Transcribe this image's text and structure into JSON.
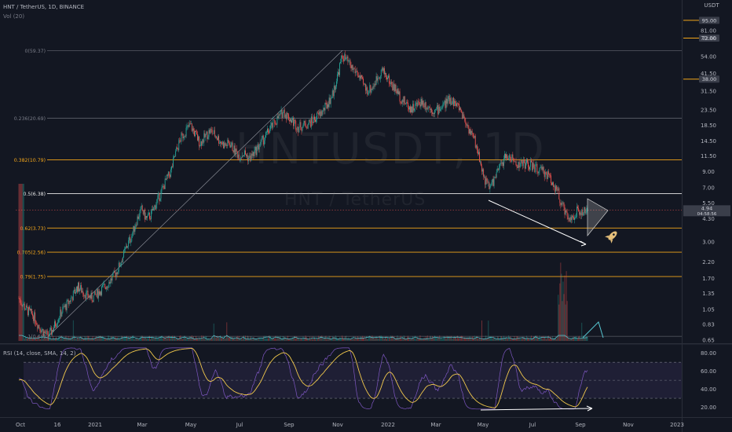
{
  "header": {
    "symbol_line": "HNT / TetherUS, 1D, BINANCE",
    "volume_label": "Vol (20)",
    "rsi_label": "RSI (14, close, SMA, 14, 2)"
  },
  "watermark": {
    "ticker": "HNTUSDT, 1D",
    "pair": "HNT / TetherUS"
  },
  "colors": {
    "background": "#131722",
    "fib_gray": "#787b86",
    "fib_white": "#e8e8e8",
    "fib_orange": "#f2a51a",
    "candle_up": "#26a69a",
    "candle_down": "#ef5350",
    "rsi_line": "#7e57c2",
    "rsi_ma": "#f2c94c",
    "price_tag": "#3a3e4a",
    "volume_ma": "#56c5d0"
  },
  "chart_data": {
    "type": "candlestick",
    "price_axis_unit": "USDT",
    "price_scale": "log",
    "price_ticks": [
      "81.00",
      "72.00",
      "54.00",
      "41.50",
      "31.50",
      "23.50",
      "18.50",
      "14.50",
      "11.50",
      "9.00",
      "7.00",
      "5.50",
      "4.30",
      "3.00",
      "2.20",
      "1.70",
      "1.35",
      "1.05",
      "0.83",
      "0.65"
    ],
    "price_tick_values": [
      81.0,
      72.0,
      54.0,
      41.5,
      31.5,
      23.5,
      18.5,
      14.5,
      11.5,
      9.0,
      7.0,
      5.5,
      4.3,
      3.0,
      2.2,
      1.7,
      1.35,
      1.05,
      0.83,
      0.65
    ],
    "time_ticks": [
      "Oct",
      "16",
      "2021",
      "Mar",
      "May",
      "Jul",
      "Sep",
      "Nov",
      "2022",
      "Mar",
      "May",
      "Jul",
      "Sep",
      "Nov",
      "2023"
    ],
    "fib_levels": [
      {
        "label": "0(59.37)",
        "value": 59.37,
        "color": "gray"
      },
      {
        "label": "0.236(20.69)",
        "value": 20.69,
        "color": "gray"
      },
      {
        "label": "0.382(10.79)",
        "value": 10.79,
        "color": "orange"
      },
      {
        "label": "0.5(6.38)",
        "value": 6.38,
        "color": "white"
      },
      {
        "label": "0.62(3.73)",
        "value": 3.73,
        "color": "orange"
      },
      {
        "label": "0.705(2.56)",
        "value": 2.56,
        "color": "orange"
      },
      {
        "label": "0.79(1.75)",
        "value": 1.75,
        "color": "orange"
      },
      {
        "label": "1(0.69)",
        "value": 0.69,
        "color": "gray"
      }
    ],
    "horizontal_rays": [
      {
        "label": "95.00",
        "value": 95.0
      },
      {
        "label": "72.00",
        "value": 72.0
      },
      {
        "label": "38.00",
        "value": 38.0
      }
    ],
    "current_price": {
      "label": "4.94",
      "value": 4.94,
      "countdown": "04:58:56"
    },
    "price_path": [
      [
        0,
        1.25
      ],
      [
        3,
        1.05
      ],
      [
        6,
        0.95
      ],
      [
        8,
        0.82
      ],
      [
        10,
        0.74
      ],
      [
        12,
        0.69
      ],
      [
        14,
        0.78
      ],
      [
        16,
        0.92
      ],
      [
        18,
        1.05
      ],
      [
        20,
        1.15
      ],
      [
        22,
        1.3
      ],
      [
        24,
        1.5
      ],
      [
        26,
        1.4
      ],
      [
        28,
        1.3
      ],
      [
        30,
        1.25
      ],
      [
        32,
        1.35
      ],
      [
        34,
        1.45
      ],
      [
        36,
        1.55
      ],
      [
        38,
        1.7
      ],
      [
        40,
        1.9
      ],
      [
        42,
        2.3
      ],
      [
        44,
        2.8
      ],
      [
        46,
        3.3
      ],
      [
        48,
        4.2
      ],
      [
        50,
        5.0
      ],
      [
        52,
        4.3
      ],
      [
        54,
        4.6
      ],
      [
        56,
        5.5
      ],
      [
        58,
        6.5
      ],
      [
        60,
        7.8
      ],
      [
        62,
        9.0
      ],
      [
        64,
        12.0
      ],
      [
        66,
        15.0
      ],
      [
        68,
        17.0
      ],
      [
        70,
        18.5
      ],
      [
        72,
        16.0
      ],
      [
        74,
        14.0
      ],
      [
        76,
        15.5
      ],
      [
        78,
        17.0
      ],
      [
        80,
        16.0
      ],
      [
        82,
        14.5
      ],
      [
        84,
        13.5
      ],
      [
        86,
        14.0
      ],
      [
        88,
        12.5
      ],
      [
        90,
        11.5
      ],
      [
        92,
        12.0
      ],
      [
        94,
        11.0
      ],
      [
        96,
        12.0
      ],
      [
        98,
        13.5
      ],
      [
        100,
        15.0
      ],
      [
        102,
        17.0
      ],
      [
        104,
        19.0
      ],
      [
        106,
        21.0
      ],
      [
        108,
        23.0
      ],
      [
        110,
        21.0
      ],
      [
        112,
        19.5
      ],
      [
        114,
        18.0
      ],
      [
        116,
        18.5
      ],
      [
        118,
        19.0
      ],
      [
        120,
        20.0
      ],
      [
        122,
        21.5
      ],
      [
        124,
        23.0
      ],
      [
        126,
        26.0
      ],
      [
        128,
        30.0
      ],
      [
        130,
        40.0
      ],
      [
        132,
        55.0
      ],
      [
        134,
        50.0
      ],
      [
        136,
        45.0
      ],
      [
        138,
        42.0
      ],
      [
        140,
        36.0
      ],
      [
        142,
        32.0
      ],
      [
        144,
        33.0
      ],
      [
        146,
        38.0
      ],
      [
        148,
        44.0
      ],
      [
        150,
        40.0
      ],
      [
        152,
        35.0
      ],
      [
        154,
        32.0
      ],
      [
        156,
        28.0
      ],
      [
        158,
        26.0
      ],
      [
        160,
        24.0
      ],
      [
        162,
        25.0
      ],
      [
        164,
        27.0
      ],
      [
        166,
        25.5
      ],
      [
        168,
        24.0
      ],
      [
        170,
        23.0
      ],
      [
        172,
        24.5
      ],
      [
        174,
        26.0
      ],
      [
        176,
        28.0
      ],
      [
        178,
        26.0
      ],
      [
        180,
        24.0
      ],
      [
        182,
        20.0
      ],
      [
        184,
        17.0
      ],
      [
        186,
        14.5
      ],
      [
        188,
        11.0
      ],
      [
        190,
        8.0
      ],
      [
        192,
        7.0
      ],
      [
        194,
        8.0
      ],
      [
        196,
        9.5
      ],
      [
        198,
        11.0
      ],
      [
        200,
        11.5
      ],
      [
        202,
        10.5
      ],
      [
        204,
        10.0
      ],
      [
        206,
        10.3
      ],
      [
        208,
        10.0
      ],
      [
        210,
        9.7
      ],
      [
        212,
        9.2
      ],
      [
        214,
        9.0
      ],
      [
        216,
        8.5
      ],
      [
        218,
        7.5
      ],
      [
        220,
        6.5
      ],
      [
        222,
        5.2
      ],
      [
        224,
        4.2
      ],
      [
        226,
        4.5
      ],
      [
        228,
        4.9
      ],
      [
        230,
        4.7
      ],
      [
        232,
        4.94
      ]
    ],
    "annotations": [
      "falling arrow on price (lower lows)",
      "symmetrical triangle",
      "rising arrow on RSI (higher lows)",
      "rocket icon"
    ],
    "rsi": {
      "ticks": [
        "80.00",
        "60.00",
        "40.00",
        "20.00"
      ],
      "tick_values": [
        80,
        60,
        40,
        20
      ],
      "upper_band": 70,
      "lower_band": 30
    }
  }
}
